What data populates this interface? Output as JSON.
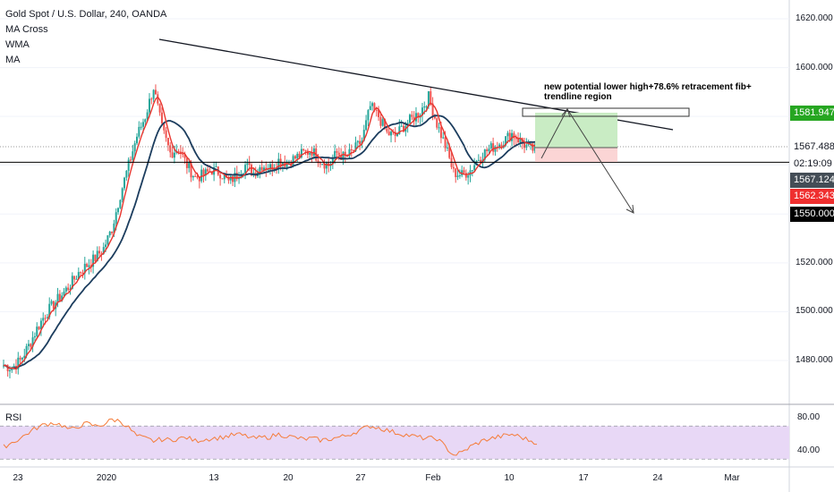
{
  "legend": {
    "title": "Gold Spot / U.S. Dollar, 240, OANDA",
    "indicators": [
      "MA Cross",
      "WMA",
      "MA"
    ]
  },
  "rsi_label": "RSI",
  "annotation": {
    "line1": "new potential lower high+78.6% retracement fib+",
    "line2": "trendline region"
  },
  "price_axis": {
    "ticks": [
      "1620.000",
      "1600.000",
      "1520.000",
      "1500.000",
      "1480.000"
    ],
    "tags": [
      {
        "id": "tag-1581",
        "text": "1581.947",
        "bg": "#26a621",
        "color": "#ffffff"
      },
      {
        "id": "tag-1567-488",
        "text": "1567.488",
        "bg": "#ffffff",
        "color": "#131722"
      },
      {
        "id": "tag-countdown",
        "text": "02:19:09",
        "bg": "#ffffff",
        "color": "#131722"
      },
      {
        "id": "tag-1567-124",
        "text": "1567.124",
        "bg": "#444d56",
        "color": "#ffffff"
      },
      {
        "id": "tag-1562",
        "text": "1562.343",
        "bg": "#ef2f2f",
        "color": "#ffffff"
      },
      {
        "id": "tag-1550",
        "text": "1550.000",
        "bg": "#000000",
        "color": "#ffffff"
      }
    ]
  },
  "rsi_axis": {
    "ticks": [
      "80.00",
      "40.00"
    ]
  },
  "time_axis": {
    "labels": [
      "23",
      "2020",
      "13",
      "20",
      "27",
      "Feb",
      "10",
      "17",
      "24",
      "Mar"
    ]
  },
  "colors": {
    "up_candle": "#26a69a",
    "down_candle": "#ef5350",
    "fast_ma": "#e8352e",
    "slow_ma": "#1c3d5e",
    "rsi_line": "#f57c3a",
    "rsi_band": "#e8d8f6",
    "target_zone": "#c9ecc4",
    "stop_zone": "#fbd5d5"
  },
  "chart_data": {
    "type": "candlestick",
    "symbol": "Gold Spot / U.S. Dollar",
    "timeframe": "240",
    "ylim": [
      1470,
      1625
    ],
    "rsi_ylim": [
      25,
      90
    ],
    "price_path": [
      1478,
      1477,
      1480,
      1486,
      1493,
      1499,
      1503,
      1507,
      1511,
      1516,
      1519,
      1522,
      1526,
      1534,
      1548,
      1560,
      1572,
      1580,
      1592,
      1575,
      1565,
      1567,
      1560,
      1555,
      1556,
      1558,
      1557,
      1553,
      1556,
      1560,
      1557,
      1560,
      1559,
      1562,
      1561,
      1563,
      1565,
      1566,
      1562,
      1560,
      1565,
      1563,
      1566,
      1570,
      1584,
      1580,
      1573,
      1572,
      1576,
      1579,
      1582,
      1588,
      1577,
      1568,
      1557,
      1556,
      1558,
      1563,
      1566,
      1568,
      1570,
      1573,
      1570,
      1567,
      1566
    ],
    "horizontal_lines": [
      1562.343,
      1550.0
    ],
    "rsi_path": [
      45,
      50,
      55,
      62,
      68,
      72,
      74,
      71,
      65,
      70,
      73,
      70,
      72,
      78,
      76,
      68,
      58,
      55,
      52,
      54,
      53,
      55,
      56,
      52,
      54,
      55,
      56,
      58,
      60,
      58,
      55,
      56,
      57,
      60,
      58,
      56,
      54,
      55,
      53,
      54,
      56,
      58,
      62,
      66,
      70,
      68,
      65,
      62,
      60,
      58,
      56,
      55,
      55,
      45,
      35,
      38,
      45,
      50,
      54,
      56,
      58,
      60,
      57,
      53,
      50
    ],
    "rsi_levels": [
      70,
      30
    ]
  }
}
